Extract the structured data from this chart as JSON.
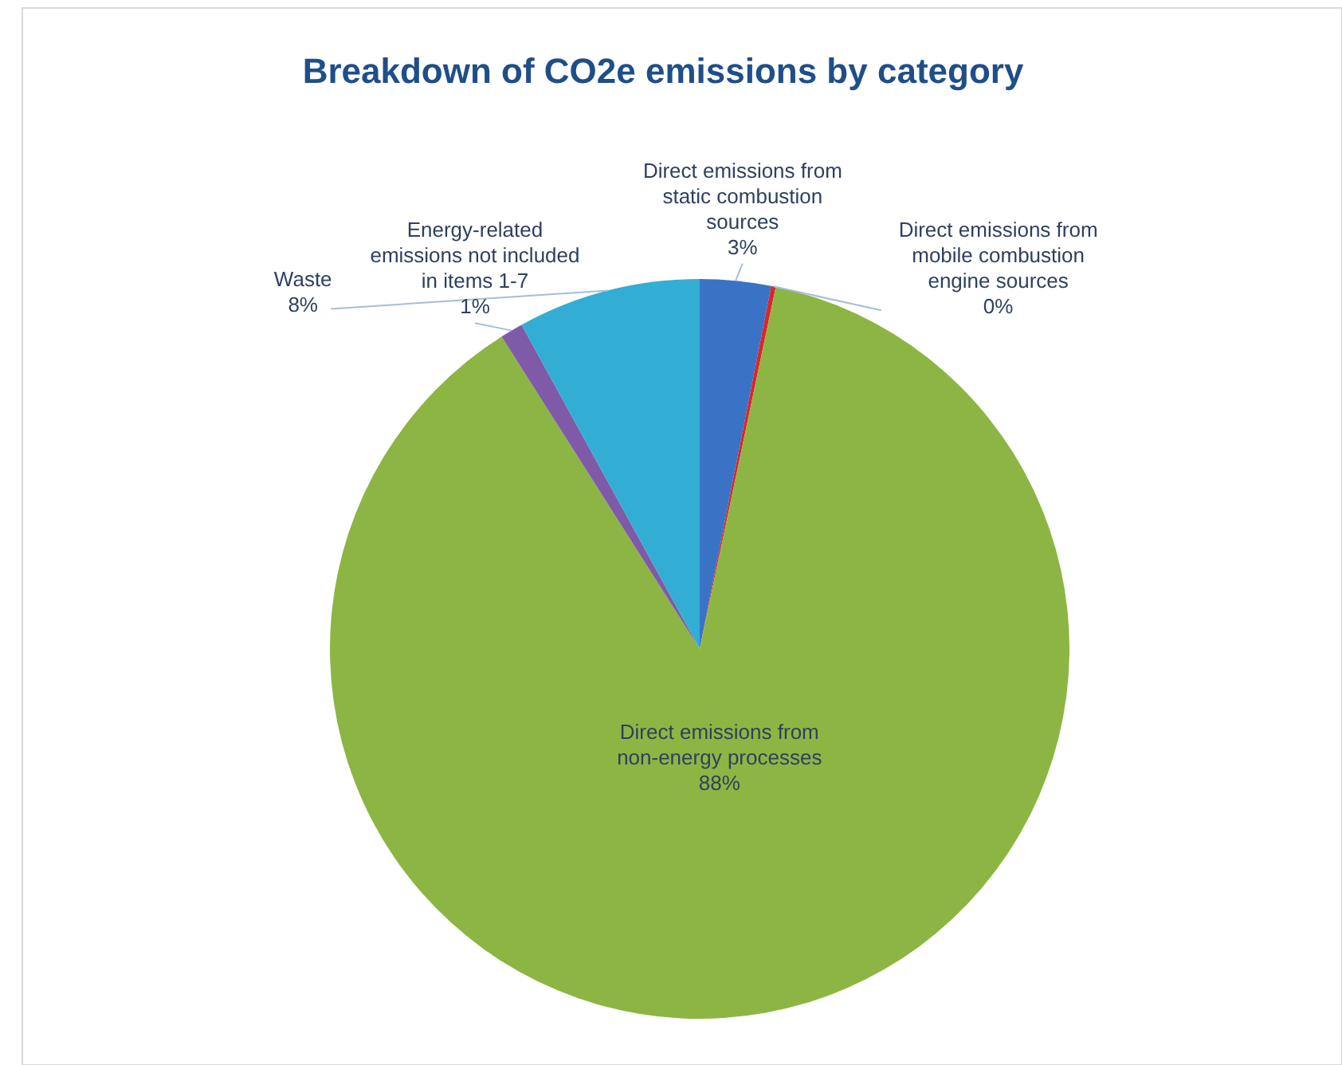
{
  "chart_data": {
    "type": "pie",
    "title": "Breakdown of CO2e emissions by category",
    "categories": [
      "Direct emissions from static combustion sources",
      "Direct emissions from mobile combustion engine sources",
      "Direct emissions from non-energy processes",
      "Energy-related emissions not included in items 1-7",
      "Waste"
    ],
    "values": [
      3.1,
      0.2,
      87.7,
      1.0,
      8.0
    ],
    "value_labels": [
      "3%",
      "0%",
      "88%",
      "1%",
      "8%"
    ],
    "colors": [
      "#3a73c6",
      "#d9262b",
      "#8db543",
      "#7f5aa8",
      "#32aed4"
    ]
  }
}
